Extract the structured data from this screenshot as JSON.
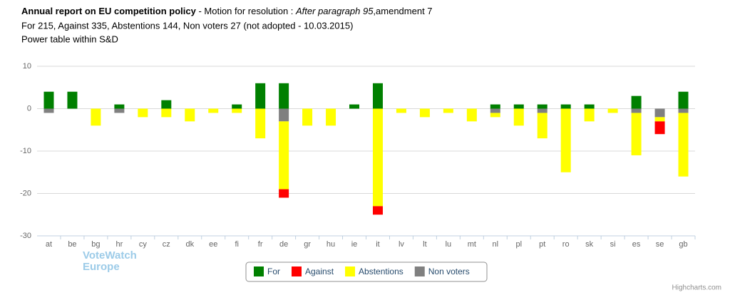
{
  "chart_data": {
    "type": "stacked_bar",
    "title": "Annual report on EU competition policy",
    "title_suffix": " - Motion for resolution : ",
    "title_italic": "After paragraph 95",
    "title_end": ",amendment 7",
    "subtitle": "For 215, Against 335, Abstentions 144, Non voters 27 (not adopted - 10.03.2015)",
    "subtitle2": "Power table within S&D",
    "logo": [
      "VoteWatch",
      "Europe"
    ],
    "credits": "Highcharts.com",
    "categories": [
      "at",
      "be",
      "bg",
      "hr",
      "cy",
      "cz",
      "dk",
      "ee",
      "fi",
      "fr",
      "de",
      "gr",
      "hu",
      "ie",
      "it",
      "lv",
      "lt",
      "lu",
      "mt",
      "nl",
      "pl",
      "pt",
      "ro",
      "sk",
      "si",
      "es",
      "se",
      "gb"
    ],
    "series": [
      {
        "name": "For",
        "color": "#008000",
        "values": [
          4,
          4,
          0,
          1,
          0,
          2,
          0,
          0,
          1,
          6,
          6,
          0,
          0,
          1,
          6,
          0,
          0,
          0,
          0,
          1,
          1,
          1,
          1,
          1,
          0,
          3,
          0,
          4
        ]
      },
      {
        "name": "Against",
        "color": "#ff0000",
        "values": [
          0,
          0,
          0,
          0,
          0,
          0,
          0,
          0,
          0,
          0,
          -2,
          0,
          0,
          0,
          -2,
          0,
          0,
          0,
          0,
          0,
          0,
          0,
          0,
          0,
          0,
          0,
          -3,
          0
        ]
      },
      {
        "name": "Abstentions",
        "color": "#ffff00",
        "values": [
          0,
          0,
          -4,
          0,
          -2,
          -2,
          -3,
          -1,
          -1,
          -7,
          -16,
          -4,
          -4,
          0,
          -23,
          -1,
          -2,
          -1,
          -3,
          -1,
          -4,
          -6,
          -15,
          -3,
          -1,
          -10,
          -1,
          -15
        ]
      },
      {
        "name": "Non voters",
        "color": "#808080",
        "values": [
          -1,
          0,
          0,
          -1,
          0,
          0,
          0,
          0,
          0,
          0,
          -3,
          0,
          0,
          0,
          0,
          0,
          0,
          0,
          0,
          -1,
          0,
          -1,
          0,
          0,
          0,
          -1,
          -2,
          -1
        ]
      }
    ],
    "ylim": [
      -30,
      10
    ],
    "yticks": [
      10,
      0,
      -10,
      -20,
      -30
    ],
    "grid": true
  }
}
